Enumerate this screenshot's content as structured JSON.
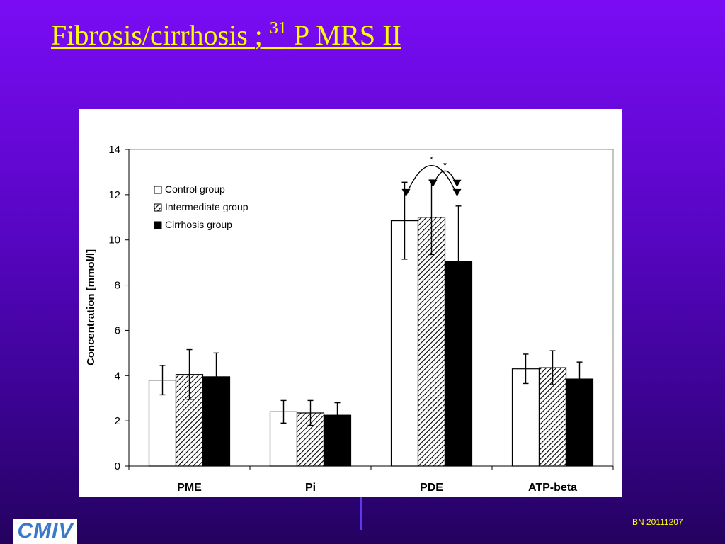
{
  "slide": {
    "title": "Fibrosis/cirrhosis ;",
    "title_superscript": "31",
    "title_suffix": "P MRS  II",
    "footer_code": "BN 20111207",
    "logo_text": "CMIV",
    "colors": {
      "background": "#5a06c6",
      "title": "#ffff00",
      "chart_panel": "#ffffff"
    }
  },
  "chart_data": {
    "type": "bar",
    "categories": [
      "PME",
      "Pi",
      "PDE",
      "ATP-beta"
    ],
    "series": [
      {
        "name": "Control group",
        "pattern": "open",
        "values": [
          3.8,
          2.4,
          10.85,
          4.3
        ],
        "errors": [
          0.65,
          0.5,
          1.7,
          0.65
        ]
      },
      {
        "name": "Intermediate group",
        "pattern": "hatched",
        "values": [
          4.05,
          2.35,
          11.0,
          4.35
        ],
        "errors": [
          1.1,
          0.55,
          1.65,
          0.75
        ]
      },
      {
        "name": "Cirrhosis group",
        "pattern": "solid",
        "values": [
          3.95,
          2.25,
          9.05,
          3.85
        ],
        "errors": [
          1.05,
          0.55,
          2.45,
          0.75
        ]
      }
    ],
    "ylabel": "Concentration [mmol/l]",
    "xlabel": "",
    "ylim": [
      0,
      14
    ],
    "yticks": [
      0,
      2,
      4,
      6,
      8,
      10,
      12,
      14
    ],
    "grid": false,
    "legend_position": "top-left",
    "annotations": [
      {
        "text": "*",
        "category": "PDE",
        "between": [
          "Control group",
          "Cirrhosis group"
        ]
      },
      {
        "text": "*",
        "category": "PDE",
        "between": [
          "Intermediate group",
          "Cirrhosis group"
        ]
      }
    ]
  }
}
